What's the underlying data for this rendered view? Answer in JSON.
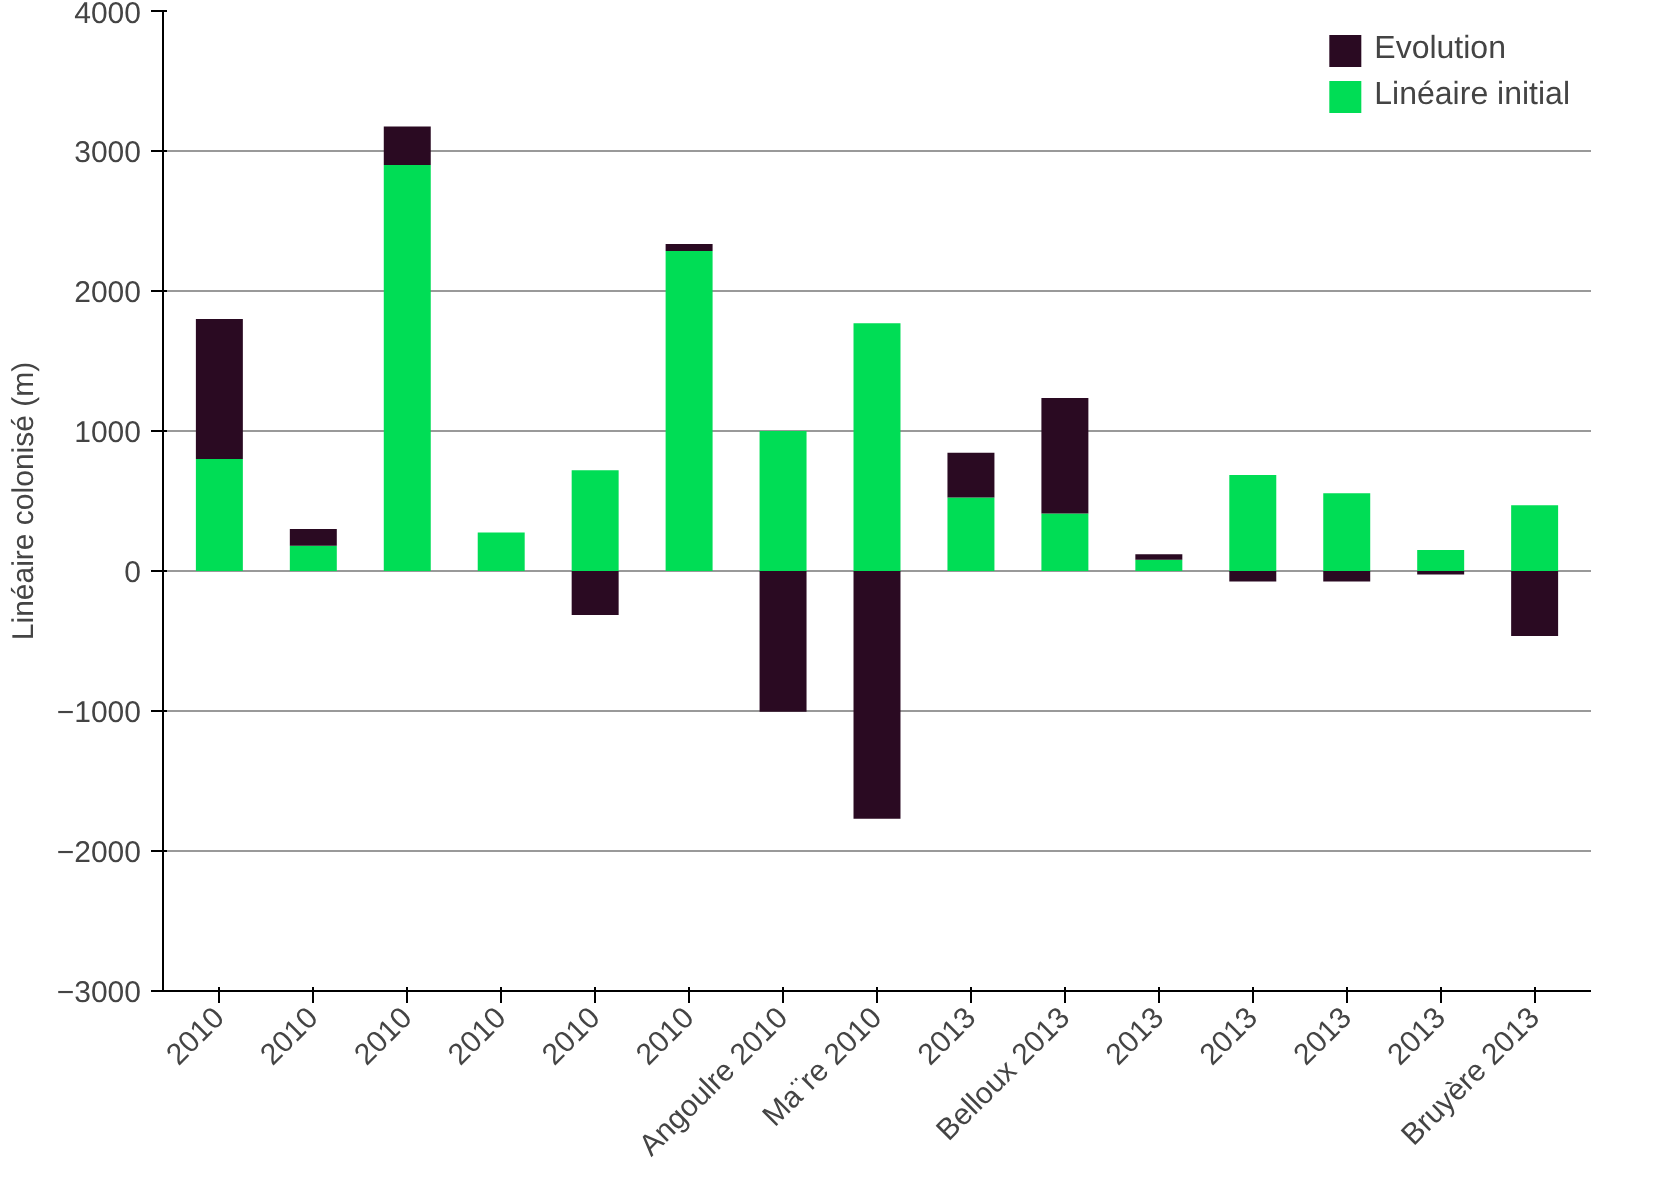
{
  "chart_data": {
    "type": "bar",
    "stacked": true,
    "ylabel": "Linéaire colonisé (m)",
    "categories": [
      "2010",
      "2010",
      "2010",
      "2010",
      "2010",
      "2010",
      "Angoulre 2010",
      "Ma¨re 2010",
      "2013",
      "Belloux 2013",
      "2013",
      "2013",
      "2013",
      "2013",
      "Bruyère 2013"
    ],
    "series": [
      {
        "name": "Linéaire initial",
        "color": "#00dd55",
        "values": [
          800,
          180,
          2900,
          275,
          720,
          2285,
          1000,
          1770,
          525,
          410,
          80,
          685,
          555,
          150,
          470
        ]
      },
      {
        "name": "Evolution",
        "color": "#2a0a22",
        "values": [
          1000,
          120,
          275,
          0,
          -315,
          50,
          -1005,
          -1770,
          320,
          825,
          40,
          -75,
          -75,
          -25,
          -465
        ]
      }
    ],
    "ylim": [
      -3000,
      4000
    ],
    "yticks": [
      -3000,
      -2000,
      -1000,
      0,
      1000,
      2000,
      3000,
      4000
    ],
    "grid": "y",
    "legend": "top right"
  }
}
